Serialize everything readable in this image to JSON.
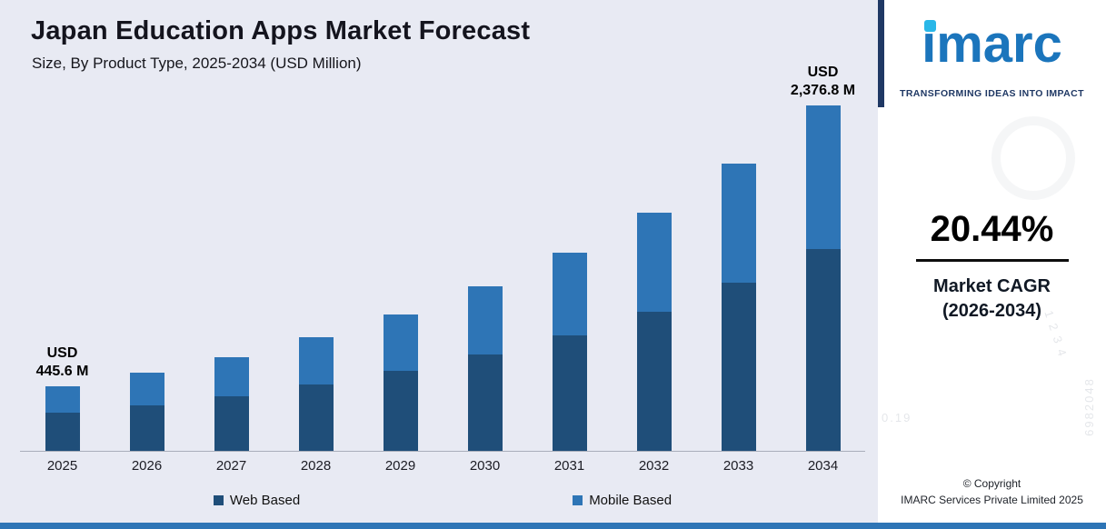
{
  "header": {
    "title": "Japan Education Apps Market Forecast",
    "subtitle": "Size, By Product Type, 2025-2034 (USD Million)"
  },
  "chart_data": {
    "type": "bar",
    "stacked": true,
    "title": "Japan Education Apps Market Forecast",
    "xlabel": "",
    "ylabel": "USD Million",
    "ylim": [
      0,
      2500
    ],
    "grid": false,
    "legend_position": "bottom",
    "categories": [
      "2025",
      "2026",
      "2027",
      "2028",
      "2029",
      "2030",
      "2031",
      "2032",
      "2033",
      "2034"
    ],
    "series": [
      {
        "name": "Web Based",
        "color": "#1f4e79",
        "values": [
          260,
          313,
          377,
          455,
          548,
          660,
          795,
          958,
          1154,
          1390
        ]
      },
      {
        "name": "Mobile Based",
        "color": "#2e75b6",
        "values": [
          185.6,
          223.7,
          269.4,
          323.5,
          389.6,
          469.2,
          565,
          680,
          818.8,
          986.8
        ]
      }
    ],
    "totals": [
      445.6,
      536.7,
      646.4,
      778.5,
      937.6,
      1129.2,
      1360,
      1638,
      1972.8,
      2376.8
    ],
    "annotations": [
      {
        "category": "2025",
        "lines": [
          "USD",
          "445.6 M"
        ]
      },
      {
        "category": "2034",
        "lines": [
          "USD",
          "2,376.8 M"
        ]
      }
    ]
  },
  "sidebar": {
    "logo_text": "imarc",
    "tagline": "TRANSFORMING IDEAS INTO IMPACT",
    "cagr_value": "20.44%",
    "cagr_label_line1": "Market CAGR",
    "cagr_label_line2": "(2026-2034)",
    "copyright_line1": "© Copyright",
    "copyright_line2": "IMARC Services Private Limited 2025",
    "watermarks": [
      "6982048",
      "1 2 3 4",
      "0.19"
    ]
  },
  "colors": {
    "web_based": "#1f4e79",
    "mobile_based": "#2e75b6",
    "chart_background": "#e8eaf3",
    "logo_blue": "#1b75bc",
    "accent_cyan": "#29b7e8",
    "footer_bar": "#2e75b6",
    "brand_stripe": "#1f3864"
  }
}
